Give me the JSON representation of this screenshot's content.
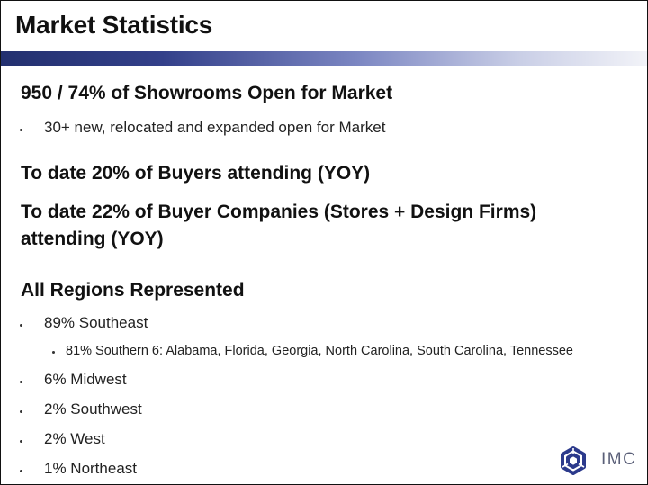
{
  "slide": {
    "title": "Market Statistics",
    "headline_1": "950 / 74% of Showrooms Open for Market",
    "bullet_1": "30+ new, relocated and expanded open for Market",
    "headline_2": "To date 20% of Buyers attending (YOY)",
    "headline_3": "To date 22% of Buyer Companies (Stores + Design Firms) attending (YOY)",
    "headline_4": "All Regions Represented",
    "regions": [
      "89% Southeast",
      "81% Southern 6: Alabama, Florida, Georgia, North Carolina, South Carolina, Tennessee",
      "6% Midwest",
      "2% Southwest",
      "2% West",
      "1% Northeast"
    ]
  },
  "logo": {
    "text": "IMC",
    "icon": "imc-knot-icon"
  },
  "colors": {
    "title_bar_dark": "#23306f",
    "title_bar_light": "#f2f3f8",
    "logo_blue": "#2c3a8c"
  }
}
